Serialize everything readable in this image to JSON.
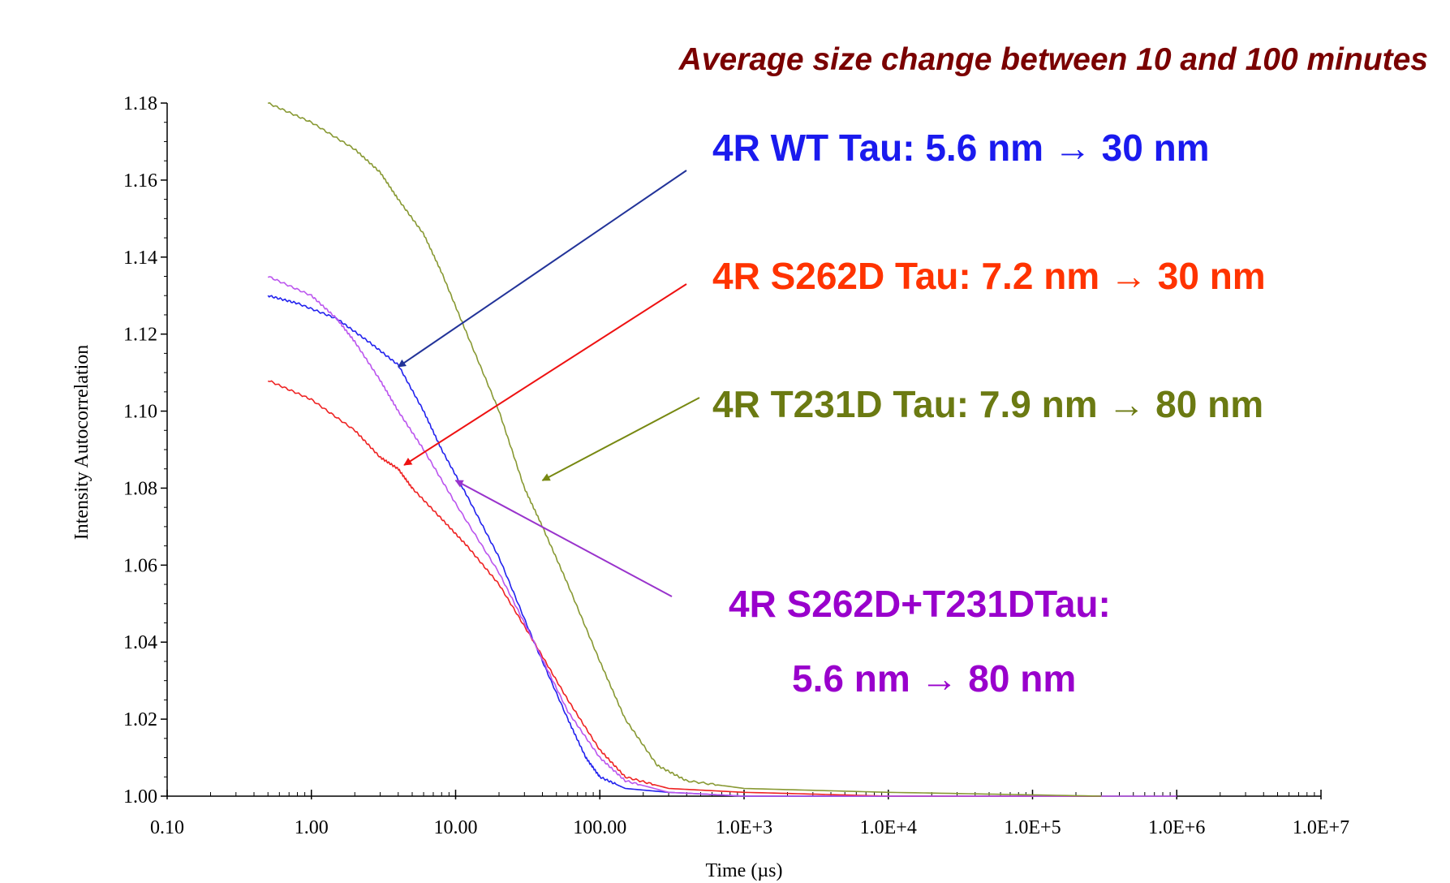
{
  "chart_data": {
    "type": "line",
    "title": "Average size change between 10 and 100 minutes",
    "xlabel": "Time (µs)",
    "ylabel": "Intensity Autocorrelation",
    "x_scale": "log",
    "xlim": [
      0.1,
      10000000
    ],
    "ylim": [
      1.0,
      1.18
    ],
    "x_ticks": [
      0.1,
      1,
      10,
      100,
      1000,
      10000,
      100000,
      1000000,
      10000000
    ],
    "x_tick_labels": [
      "0.10",
      "1.00",
      "10.00",
      "100.00",
      "1.0E+3",
      "1.0E+4",
      "1.0E+5",
      "1.0E+6",
      "1.0E+7"
    ],
    "y_ticks": [
      1.0,
      1.02,
      1.04,
      1.06,
      1.08,
      1.1,
      1.12,
      1.14,
      1.16,
      1.18
    ],
    "y_tick_labels": [
      "1.00",
      "1.02",
      "1.04",
      "1.06",
      "1.08",
      "1.10",
      "1.12",
      "1.14",
      "1.16",
      "1.18"
    ],
    "grid": false,
    "series": [
      {
        "color": "#2222ee",
        "points": [
          [
            0.5,
            1.13
          ],
          [
            0.8,
            1.128
          ],
          [
            1.5,
            1.124
          ],
          [
            2.5,
            1.118
          ],
          [
            4,
            1.112
          ],
          [
            6,
            1.1
          ],
          [
            8,
            1.09
          ],
          [
            12,
            1.078
          ],
          [
            20,
            1.062
          ],
          [
            35,
            1.04
          ],
          [
            60,
            1.02
          ],
          [
            80,
            1.01
          ],
          [
            100,
            1.005
          ],
          [
            150,
            1.002
          ],
          [
            300,
            1.001
          ],
          [
            1000,
            1.0
          ],
          [
            10000.0,
            1.0
          ],
          [
            300000.0,
            1.0
          ]
        ]
      },
      {
        "color": "#ee2222",
        "points": [
          [
            0.5,
            1.108
          ],
          [
            1,
            1.103
          ],
          [
            2,
            1.095
          ],
          [
            3,
            1.088
          ],
          [
            4,
            1.085
          ],
          [
            5,
            1.08
          ],
          [
            8,
            1.072
          ],
          [
            12,
            1.065
          ],
          [
            20,
            1.055
          ],
          [
            35,
            1.04
          ],
          [
            60,
            1.025
          ],
          [
            100,
            1.012
          ],
          [
            150,
            1.005
          ],
          [
            300,
            1.002
          ],
          [
            1000,
            1.001
          ],
          [
            10000.0,
            1.0
          ],
          [
            300000.0,
            1.0
          ]
        ]
      },
      {
        "color": "#bb55ee",
        "points": [
          [
            0.5,
            1.135
          ],
          [
            1,
            1.13
          ],
          [
            1.5,
            1.124
          ],
          [
            2,
            1.118
          ],
          [
            3,
            1.108
          ],
          [
            4,
            1.1
          ],
          [
            6,
            1.09
          ],
          [
            10,
            1.076
          ],
          [
            20,
            1.058
          ],
          [
            35,
            1.04
          ],
          [
            60,
            1.022
          ],
          [
            100,
            1.01
          ],
          [
            150,
            1.004
          ],
          [
            300,
            1.001
          ],
          [
            1000,
            1.0
          ],
          [
            100000.0,
            1.0
          ],
          [
            1000000.0,
            1.0
          ]
        ]
      },
      {
        "color": "#889933",
        "points": [
          [
            0.5,
            1.18
          ],
          [
            1,
            1.175
          ],
          [
            2,
            1.168
          ],
          [
            3,
            1.162
          ],
          [
            4,
            1.155
          ],
          [
            6,
            1.146
          ],
          [
            8,
            1.136
          ],
          [
            12,
            1.12
          ],
          [
            20,
            1.1
          ],
          [
            30,
            1.08
          ],
          [
            40,
            1.07
          ],
          [
            60,
            1.055
          ],
          [
            100,
            1.035
          ],
          [
            150,
            1.02
          ],
          [
            250,
            1.008
          ],
          [
            400,
            1.004
          ],
          [
            1000,
            1.002
          ],
          [
            10000.0,
            1.001
          ],
          [
            300000.0,
            1.0
          ]
        ]
      }
    ],
    "annotations": [
      {
        "text": "4R WT Tau: 5.6 nm → 30 nm",
        "color": "#1a1aee",
        "arrow_to": [
          4.0,
          1.1115
        ]
      },
      {
        "text": "4R S262D Tau: 7.2 nm → 30 nm",
        "color": "#ff3300",
        "arrow_to": [
          4.4,
          1.086
        ]
      },
      {
        "text": "4R T231D Tau: 7.9 nm → 80 nm",
        "color": "#6b7a12",
        "arrow_to": [
          40.0,
          1.082
        ]
      },
      {
        "text": "4R S262D+T231DTau:",
        "color": "#9900cc",
        "arrow_to": [
          10.0,
          1.082
        ]
      },
      {
        "text": "5.6 nm → 80 nm",
        "color": "#9900cc"
      }
    ],
    "title_color": "#7a0000",
    "arrow_colors": [
      "#223399",
      "#ee1111",
      "#778811",
      "#9933cc"
    ]
  }
}
